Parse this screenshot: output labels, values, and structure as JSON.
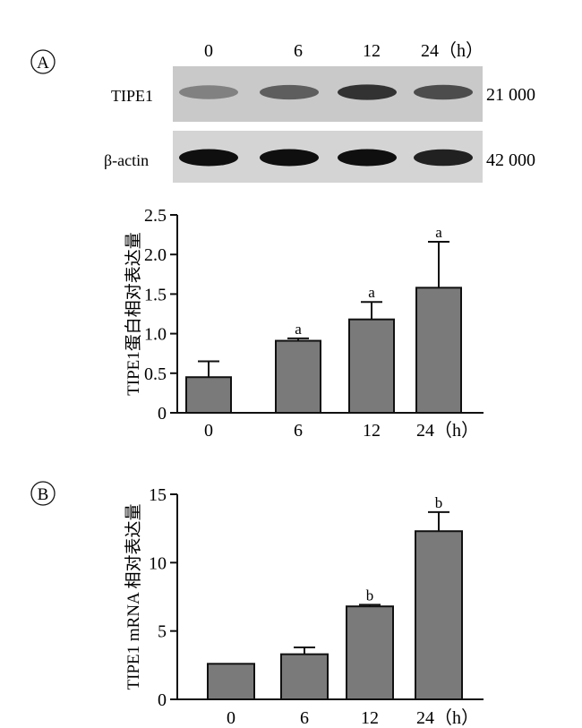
{
  "panel_a": {
    "label": "A",
    "blot": {
      "time_labels": [
        "0",
        "6",
        "12",
        "24（h）"
      ],
      "rows": [
        {
          "name": "TIPE1",
          "mw": "21 000",
          "intensity": [
            0.35,
            0.55,
            0.8,
            0.65
          ]
        },
        {
          "name": "β-actin",
          "mw": "42 000",
          "intensity": [
            1.0,
            1.0,
            1.0,
            0.9
          ]
        }
      ]
    }
  },
  "panel_b": {
    "label": "B"
  },
  "chart_data": [
    {
      "type": "bar",
      "categories": [
        "0",
        "6",
        "12",
        "24（h）"
      ],
      "values": [
        0.45,
        0.91,
        1.18,
        1.58
      ],
      "errors": [
        0.2,
        0.03,
        0.22,
        0.58
      ],
      "annotations": [
        "",
        "a",
        "a",
        "a"
      ],
      "ylabel": "TIPE1蛋白相对表达量",
      "ylim": [
        0,
        2.5
      ],
      "yticks": [
        "0",
        "0.5",
        "1.0",
        "1.5",
        "2.0",
        "2.5"
      ],
      "grid": false,
      "bar_color": "#7a7a7a"
    },
    {
      "type": "bar",
      "categories": [
        "0",
        "6",
        "12",
        "24（h）"
      ],
      "values": [
        2.6,
        3.3,
        6.8,
        12.3
      ],
      "errors": [
        0,
        0.5,
        0.12,
        1.4
      ],
      "annotations": [
        "",
        "",
        "b",
        "b"
      ],
      "ylabel": "TIPE1 mRNA 相对表达量",
      "ylim": [
        0,
        15
      ],
      "yticks": [
        "0",
        "5",
        "10",
        "15"
      ],
      "grid": false,
      "bar_color": "#7a7a7a"
    }
  ]
}
